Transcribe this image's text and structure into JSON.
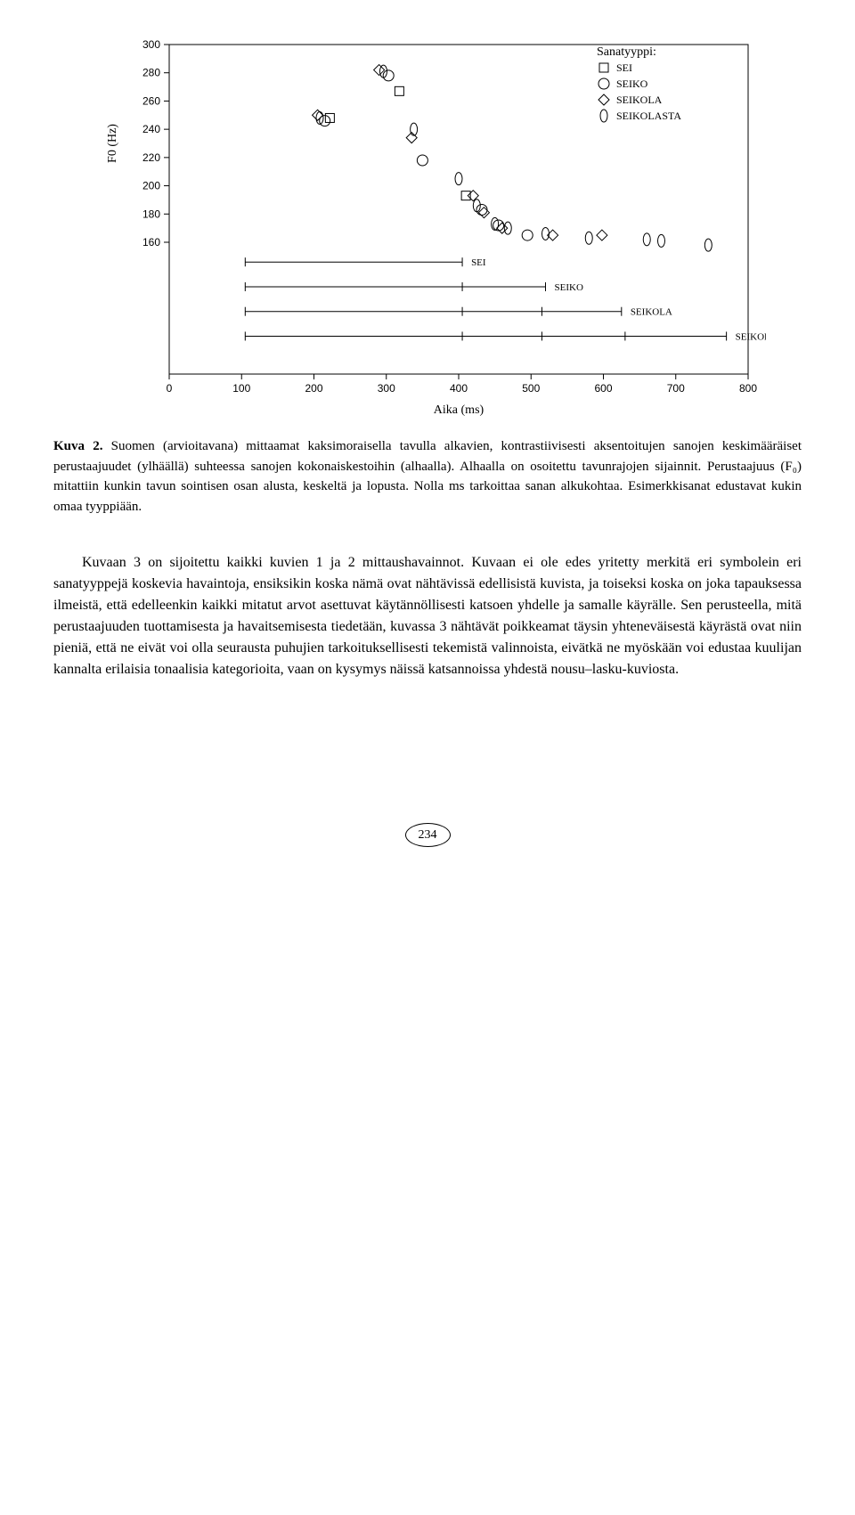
{
  "chart": {
    "type": "scatter",
    "ylabel": "F0 (Hz)",
    "xlabel": "Aika (ms)",
    "legend_title": "Sanatyyppi:",
    "legend_items": [
      {
        "marker": "square",
        "label": "SEI"
      },
      {
        "marker": "circle",
        "label": "SEIKO"
      },
      {
        "marker": "diamond",
        "label": "SEIKOLA"
      },
      {
        "marker": "ellipse",
        "label": "SEIKOLASTA"
      }
    ],
    "xlim": [
      0,
      800
    ],
    "ylim": [
      160,
      300
    ],
    "xticks": [
      0,
      100,
      200,
      300,
      400,
      500,
      600,
      700,
      800
    ],
    "yticks": [
      160,
      180,
      200,
      220,
      240,
      260,
      280,
      300
    ],
    "tick_fontsize": 12,
    "label_fontsize": 14,
    "legend_fontsize": 12,
    "background_color": "#ffffff",
    "axis_color": "#000000",
    "marker_stroke": "#000000",
    "marker_size": 5,
    "points": [
      {
        "x": 205,
        "y": 250,
        "marker": "diamond"
      },
      {
        "x": 208,
        "y": 248,
        "marker": "ellipse"
      },
      {
        "x": 215,
        "y": 246,
        "marker": "circle"
      },
      {
        "x": 222,
        "y": 248,
        "marker": "square"
      },
      {
        "x": 290,
        "y": 282,
        "marker": "diamond"
      },
      {
        "x": 296,
        "y": 281,
        "marker": "ellipse"
      },
      {
        "x": 303,
        "y": 278,
        "marker": "circle"
      },
      {
        "x": 318,
        "y": 267,
        "marker": "square"
      },
      {
        "x": 335,
        "y": 234,
        "marker": "diamond"
      },
      {
        "x": 338,
        "y": 240,
        "marker": "ellipse"
      },
      {
        "x": 350,
        "y": 218,
        "marker": "circle"
      },
      {
        "x": 400,
        "y": 205,
        "marker": "ellipse"
      },
      {
        "x": 410,
        "y": 193,
        "marker": "square"
      },
      {
        "x": 420,
        "y": 193,
        "marker": "diamond"
      },
      {
        "x": 425,
        "y": 186,
        "marker": "ellipse"
      },
      {
        "x": 432,
        "y": 183,
        "marker": "circle"
      },
      {
        "x": 435,
        "y": 181,
        "marker": "diamond"
      },
      {
        "x": 450,
        "y": 173,
        "marker": "ellipse"
      },
      {
        "x": 455,
        "y": 172,
        "marker": "circle"
      },
      {
        "x": 460,
        "y": 170,
        "marker": "diamond"
      },
      {
        "x": 468,
        "y": 170,
        "marker": "ellipse"
      },
      {
        "x": 495,
        "y": 165,
        "marker": "circle"
      },
      {
        "x": 520,
        "y": 166,
        "marker": "ellipse"
      },
      {
        "x": 530,
        "y": 165,
        "marker": "diamond"
      },
      {
        "x": 580,
        "y": 163,
        "marker": "ellipse"
      },
      {
        "x": 598,
        "y": 165,
        "marker": "diamond"
      },
      {
        "x": 660,
        "y": 162,
        "marker": "ellipse"
      },
      {
        "x": 680,
        "y": 161,
        "marker": "ellipse"
      },
      {
        "x": 745,
        "y": 158,
        "marker": "ellipse"
      }
    ],
    "interval_bars": [
      {
        "label": "SEI",
        "start": 105,
        "end": 405,
        "ticks": []
      },
      {
        "label": "SEIKO",
        "start": 105,
        "end": 520,
        "ticks": [
          405
        ]
      },
      {
        "label": "SEIKOLA",
        "start": 105,
        "end": 625,
        "ticks": [
          405,
          515
        ]
      },
      {
        "label": "SEIKOLASTA",
        "start": 105,
        "end": 770,
        "ticks": [
          405,
          515,
          630
        ]
      }
    ],
    "interval_label_fontsize": 11
  },
  "caption": {
    "lead": "Kuva 2.",
    "text": " Suomen (arvioitavana) mittaamat kaksimoraisella tavulla alkavien, kontrastiivisesti aksentoitujen sanojen keskimääräiset perustaajuudet (ylhäällä) suhteessa sanojen kokonaiskestoihin (alhaalla). Alhaalla on osoitettu tavunrajojen sijainnit. Perustaajuus (F₀) mitattiin kunkin tavun sointisen osan alusta, keskeltä ja lopusta. Nolla ms tarkoittaa sanan alkukohtaa. Esimerkkisanat edustavat kukin omaa tyyppiään."
  },
  "body_paragraph": "Kuvaan 3 on sijoitettu kaikki kuvien 1 ja 2 mittaushavainnot. Kuvaan ei ole edes yritetty merkitä eri symbolein eri sanatyyppejä koskevia havaintoja, ensiksikin koska nämä ovat nähtävissä edellisistä kuvista, ja toiseksi koska on joka tapauksessa ilmeistä, että edelleenkin kaikki mitatut arvot asettuvat käytännöllisesti katsoen yhdelle ja samalle käyrälle. Sen perusteella, mitä perustaajuuden tuottamisesta ja havaitsemisesta tiedetään, kuvassa 3 nähtävät poikkeamat täysin yhteneväisestä käyrästä ovat niin pieniä, että ne eivät voi olla seurausta puhujien tarkoituksellisesti tekemistä valinnoista, eivätkä ne myöskään voi edustaa kuulijan kannalta erilaisia tonaalisia kategorioita, vaan on kysymys näissä katsannoissa yhdestä nousu–lasku-kuviosta.",
  "page_number": "234"
}
